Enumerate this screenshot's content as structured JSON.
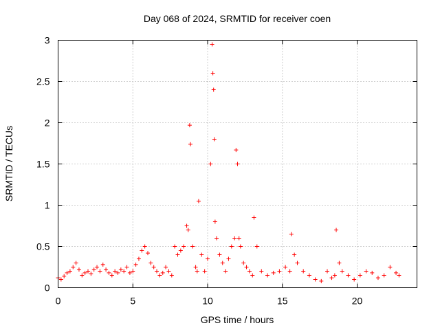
{
  "chart_data": {
    "type": "scatter",
    "title": "Day 068 of 2024, SRMTID for receiver coen",
    "xlabel": "GPS time / hours",
    "ylabel": "SRMTID / TECUs",
    "xlim": [
      0,
      24
    ],
    "ylim": [
      0,
      3
    ],
    "xticks": [
      "0",
      "5",
      "10",
      "15",
      "20"
    ],
    "xtick_values": [
      0,
      5,
      10,
      15,
      20
    ],
    "yticks": [
      "0",
      "0.5",
      "1",
      "1.5",
      "2",
      "2.5",
      "3"
    ],
    "ytick_values": [
      0,
      0.5,
      1,
      1.5,
      2,
      2.5,
      3
    ],
    "grid": true,
    "marker": "+",
    "color": "#ff0000",
    "series": [
      {
        "name": "coen",
        "x": [
          0.0,
          0.2,
          0.4,
          0.6,
          0.8,
          1.0,
          1.2,
          1.4,
          1.6,
          1.8,
          2.0,
          2.2,
          2.4,
          2.6,
          2.8,
          3.0,
          3.2,
          3.4,
          3.6,
          3.8,
          4.0,
          4.2,
          4.4,
          4.6,
          4.8,
          5.0,
          5.2,
          5.4,
          5.6,
          5.8,
          6.0,
          6.2,
          6.4,
          6.6,
          6.8,
          7.0,
          7.2,
          7.4,
          7.6,
          7.8,
          8.0,
          8.2,
          8.4,
          8.6,
          8.7,
          8.8,
          8.85,
          9.0,
          9.2,
          9.3,
          9.4,
          9.6,
          9.8,
          10.0,
          10.2,
          10.3,
          10.35,
          10.4,
          10.45,
          10.5,
          10.6,
          10.8,
          11.0,
          11.2,
          11.4,
          11.6,
          11.8,
          11.9,
          12.0,
          12.1,
          12.2,
          12.4,
          12.6,
          12.8,
          13.0,
          13.1,
          13.3,
          13.6,
          14.0,
          14.4,
          14.8,
          15.2,
          15.5,
          15.6,
          15.8,
          16.0,
          16.4,
          16.8,
          17.2,
          17.6,
          18.0,
          18.3,
          18.5,
          18.6,
          18.8,
          19.0,
          19.4,
          19.8,
          20.2,
          20.6,
          21.0,
          21.4,
          21.8,
          22.2,
          22.6,
          22.8
        ],
        "y": [
          0.12,
          0.1,
          0.14,
          0.18,
          0.2,
          0.25,
          0.3,
          0.22,
          0.15,
          0.18,
          0.2,
          0.17,
          0.22,
          0.25,
          0.2,
          0.28,
          0.22,
          0.18,
          0.15,
          0.2,
          0.18,
          0.22,
          0.2,
          0.25,
          0.18,
          0.2,
          0.28,
          0.35,
          0.45,
          0.5,
          0.42,
          0.3,
          0.25,
          0.2,
          0.15,
          0.18,
          0.25,
          0.2,
          0.15,
          0.5,
          0.4,
          0.45,
          0.5,
          0.75,
          0.7,
          1.97,
          1.74,
          0.5,
          0.25,
          0.2,
          1.05,
          0.4,
          0.2,
          0.35,
          1.5,
          2.95,
          2.6,
          2.4,
          1.8,
          0.8,
          0.6,
          0.4,
          0.3,
          0.2,
          0.35,
          0.5,
          0.6,
          1.67,
          1.5,
          0.6,
          0.5,
          0.3,
          0.25,
          0.2,
          0.15,
          0.85,
          0.5,
          0.2,
          0.15,
          0.18,
          0.2,
          0.25,
          0.2,
          0.65,
          0.4,
          0.3,
          0.2,
          0.15,
          0.1,
          0.08,
          0.2,
          0.12,
          0.15,
          0.7,
          0.3,
          0.2,
          0.15,
          0.1,
          0.15,
          0.2,
          0.18,
          0.12,
          0.15,
          0.25,
          0.18,
          0.15
        ]
      }
    ]
  }
}
